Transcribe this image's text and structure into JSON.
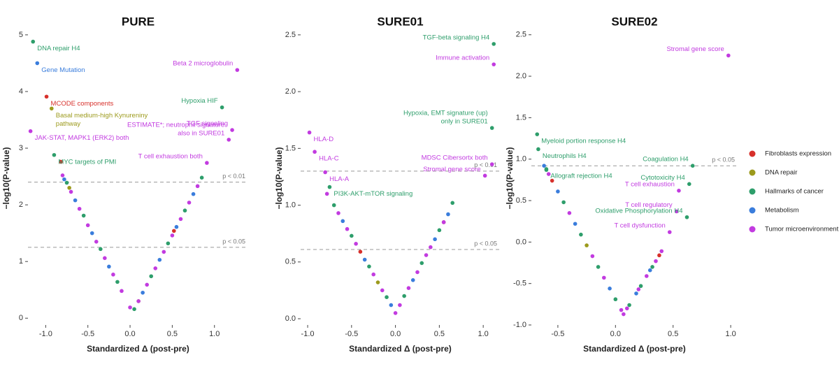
{
  "legend": [
    {
      "name": "Fibroblasts expression",
      "color": "#d7302b"
    },
    {
      "name": "DNA repair",
      "color": "#9c9a1c"
    },
    {
      "name": "Hallmarks of cancer",
      "color": "#2e9e6b"
    },
    {
      "name": "Metabolism",
      "color": "#3a7ddc"
    },
    {
      "name": "Tumor microenvironment",
      "color": "#c23be0"
    }
  ],
  "chart_data": [
    {
      "type": "scatter",
      "title": "PURE",
      "xlabel": "Standardized Δ (post-pre)",
      "ylabel": "−log10(P-value)",
      "xlim": [
        -1.21,
        1.4
      ],
      "ylim": [
        -0.12,
        5.06
      ],
      "xticks": [
        {
          "value": -1,
          "label": "-1.0"
        },
        -0.5,
        {
          "value": 0,
          "label": "0.0"
        },
        0.5,
        {
          "value": 1,
          "label": "1.0"
        }
      ],
      "yticks": [
        0,
        1,
        2,
        3,
        4,
        5
      ],
      "thresholds": [
        {
          "value": 2.4,
          "label": "p < 0.01"
        },
        {
          "value": 1.25,
          "label": "p < 0.05"
        }
      ],
      "series": [
        {
          "x": [
            -0.82,
            0.52
          ],
          "values": [
            2.76,
            1.54
          ]
        },
        {
          "x": [
            -0.72,
            0.1
          ],
          "values": [
            2.3,
            0.3
          ]
        },
        {
          "x": [
            -0.75,
            -0.55,
            -0.35,
            -0.15,
            0.05,
            0.25,
            0.45,
            0.65,
            0.85
          ],
          "values": [
            2.39,
            1.81,
            1.22,
            0.64,
            0.16,
            0.74,
            1.32,
            1.9,
            2.48
          ]
        },
        {
          "x": [
            -0.78,
            -0.65,
            -0.45,
            -0.25,
            0.15,
            0.35,
            0.55,
            0.75
          ],
          "values": [
            2.45,
            2.08,
            1.5,
            0.91,
            0.45,
            1.03,
            1.61,
            2.19
          ]
        },
        {
          "x": [
            -0.8,
            -0.7,
            -0.6,
            -0.5,
            -0.4,
            -0.3,
            -0.2,
            -0.1,
            0.0,
            0.1,
            0.2,
            0.3,
            0.4,
            0.5,
            0.6,
            0.7,
            0.8
          ],
          "values": [
            2.52,
            2.23,
            1.93,
            1.64,
            1.35,
            1.06,
            0.77,
            0.48,
            0.19,
            0.3,
            0.59,
            0.88,
            1.17,
            1.46,
            1.75,
            2.04,
            2.33
          ]
        }
      ],
      "annotations": [
        {
          "lines": [
            "DNA repair H4"
          ],
          "x": -1.15,
          "y": 4.88,
          "color": "#2e9e6b"
        },
        {
          "lines": [
            "Gene Mutation"
          ],
          "x": -1.1,
          "y": 4.5,
          "color": "#3a7ddc"
        },
        {
          "lines": [
            "Beta 2 microglobulin"
          ],
          "x": 1.27,
          "y": 4.38,
          "color": "#c23be0"
        },
        {
          "lines": [
            "MCODE components"
          ],
          "x": -0.99,
          "y": 3.91,
          "color": "#d7302b"
        },
        {
          "lines": [
            "Basal medium-high Kynureniny",
            "pathway"
          ],
          "x": -0.93,
          "y": 3.7,
          "color": "#9c9a1c"
        },
        {
          "lines": [
            "Hypoxia HIF"
          ],
          "x": 1.09,
          "y": 3.72,
          "color": "#2e9e6b"
        },
        {
          "lines": [
            "TGF signaling"
          ],
          "x": 1.21,
          "y": 3.32,
          "color": "#c23be0"
        },
        {
          "lines": [
            "JAK-STAT, MAPK1 (ERK2) both"
          ],
          "x": -1.18,
          "y": 3.3,
          "color": "#c23be0"
        },
        {
          "lines": [
            "ESTIMATE*; neutrophil signature",
            "also in SURE01"
          ],
          "x": 1.17,
          "y": 3.15,
          "color": "#c23be0"
        },
        {
          "lines": [
            "MYC targets of PMI"
          ],
          "x": -0.9,
          "y": 2.88,
          "color": "#2e9e6b"
        },
        {
          "lines": [
            "T cell exhaustion both"
          ],
          "x": 0.91,
          "y": 2.74,
          "color": "#c23be0"
        }
      ]
    },
    {
      "type": "scatter",
      "title": "SURE01",
      "xlabel": "Standardized Δ (post-pre)",
      "ylabel": "−log10(P-value)",
      "xlim": [
        -1.08,
        1.19
      ],
      "ylim": [
        -0.055,
        2.53
      ],
      "xticks": [
        {
          "value": -1,
          "label": "-1.0"
        },
        -0.5,
        {
          "value": 0,
          "label": "0.0"
        },
        0.5,
        {
          "value": 1,
          "label": "1.0"
        }
      ],
      "yticks": [
        {
          "value": 0,
          "label": "0.0"
        },
        0.5,
        {
          "value": 1,
          "label": "1.0"
        },
        1.5,
        {
          "value": 2,
          "label": "2.0"
        },
        2.5
      ],
      "thresholds": [
        {
          "value": 1.3,
          "label": "p < 0.01"
        },
        {
          "value": 0.61,
          "label": "p < 0.05"
        }
      ],
      "series": [
        {
          "x": [
            -0.4,
            0.55
          ],
          "values": [
            0.59,
            0.85
          ]
        },
        {
          "x": [
            -0.2
          ],
          "values": [
            0.32
          ]
        },
        {
          "x": [
            -0.7,
            -0.5,
            -0.3,
            -0.1,
            0.1,
            0.3,
            0.5,
            0.65
          ],
          "values": [
            1.0,
            0.73,
            0.46,
            0.19,
            0.2,
            0.49,
            0.78,
            1.02
          ]
        },
        {
          "x": [
            -0.6,
            -0.35,
            -0.05,
            0.2,
            0.45,
            0.6
          ],
          "values": [
            0.86,
            0.52,
            0.12,
            0.34,
            0.7,
            0.92
          ]
        },
        {
          "x": [
            -0.78,
            -0.65,
            -0.55,
            -0.45,
            -0.25,
            -0.15,
            0.0,
            0.05,
            0.15,
            0.25,
            0.35,
            0.4,
            0.55
          ],
          "values": [
            1.1,
            0.93,
            0.79,
            0.66,
            0.39,
            0.25,
            0.05,
            0.12,
            0.27,
            0.41,
            0.56,
            0.63,
            0.85
          ]
        }
      ],
      "annotations": [
        {
          "lines": [
            "TGF-beta signaling H4"
          ],
          "x": 1.12,
          "y": 2.42,
          "color": "#2e9e6b"
        },
        {
          "lines": [
            "Immune activation"
          ],
          "x": 1.12,
          "y": 2.24,
          "color": "#c23be0"
        },
        {
          "lines": [
            "HLA-D"
          ],
          "x": -0.98,
          "y": 1.64,
          "color": "#c23be0"
        },
        {
          "lines": [
            "HLA-C"
          ],
          "x": -0.92,
          "y": 1.47,
          "color": "#c23be0"
        },
        {
          "lines": [
            "HLA-A"
          ],
          "x": -0.8,
          "y": 1.29,
          "color": "#c23be0"
        },
        {
          "lines": [
            "Hypoxia, EMT signature (up)",
            "only in SURE01"
          ],
          "x": 1.1,
          "y": 1.68,
          "color": "#2e9e6b"
        },
        {
          "lines": [
            "MDSC Cibersortx both"
          ],
          "x": 1.1,
          "y": 1.36,
          "color": "#c23be0"
        },
        {
          "lines": [
            "PI3K-AKT-mTOR signaling"
          ],
          "x": -0.75,
          "y": 1.16,
          "color": "#2e9e6b"
        },
        {
          "lines": [
            "Stromal gene score"
          ],
          "x": 1.02,
          "y": 1.26,
          "color": "#c23be0"
        }
      ]
    },
    {
      "type": "scatter",
      "title": "SURE02",
      "xlabel": "Standardized Δ (post-pre)",
      "ylabel": "−log10(P-value)",
      "xlim": [
        -0.73,
        1.06
      ],
      "ylim": [
        -1.0,
        2.54
      ],
      "xticks": [
        -0.5,
        {
          "value": 0,
          "label": "0.0"
        },
        0.5,
        {
          "value": 1,
          "label": "1.0"
        }
      ],
      "yticks": [
        {
          "value": -1,
          "label": "-1.0"
        },
        -0.5,
        {
          "value": 0,
          "label": "0.0"
        },
        0.5,
        {
          "value": 1,
          "label": "1.0"
        },
        1.5,
        {
          "value": 2,
          "label": "2.0"
        },
        2.5
      ],
      "thresholds": [
        {
          "value": 0.92,
          "label": "p < 0.05"
        }
      ],
      "series": [
        {
          "x": [
            -0.55,
            0.38
          ],
          "values": [
            0.74,
            -0.16
          ]
        },
        {
          "x": [
            -0.25
          ],
          "values": [
            -0.04
          ]
        },
        {
          "x": [
            -0.6,
            -0.45,
            -0.3,
            -0.15,
            0.0,
            0.12,
            0.22,
            0.32
          ],
          "values": [
            0.87,
            0.48,
            0.09,
            -0.3,
            -0.69,
            -0.76,
            -0.53,
            -0.3
          ]
        },
        {
          "x": [
            -0.62,
            -0.5,
            -0.35,
            -0.05,
            0.18,
            0.3
          ],
          "values": [
            0.92,
            0.61,
            0.22,
            -0.56,
            -0.62,
            -0.34
          ]
        },
        {
          "x": [
            -0.58,
            -0.4,
            -0.2,
            -0.1,
            0.05,
            0.07,
            0.1,
            0.2,
            0.27,
            0.35,
            0.4
          ],
          "values": [
            0.82,
            0.35,
            -0.17,
            -0.43,
            -0.82,
            -0.87,
            -0.8,
            -0.57,
            -0.41,
            -0.23,
            -0.11
          ]
        }
      ],
      "annotations": [
        {
          "lines": [
            "Stromal gene score"
          ],
          "x": 0.98,
          "y": 2.25,
          "color": "#c23be0"
        },
        {
          "lines": [
            "Myeloid portion response H4"
          ],
          "x": -0.68,
          "y": 1.3,
          "color": "#2e9e6b"
        },
        {
          "lines": [
            "Neutrophils H4"
          ],
          "x": -0.67,
          "y": 1.12,
          "color": "#2e9e6b"
        },
        {
          "lines": [
            "Allograft rejection H4"
          ],
          "x": -0.6,
          "y": 0.88,
          "color": "#2e9e6b"
        },
        {
          "lines": [
            "Coagulation H4"
          ],
          "x": 0.67,
          "y": 0.92,
          "color": "#2e9e6b"
        },
        {
          "lines": [
            "Cytotoxicity H4"
          ],
          "x": 0.64,
          "y": 0.7,
          "color": "#2e9e6b"
        },
        {
          "lines": [
            "T cell exhaustion"
          ],
          "x": 0.55,
          "y": 0.62,
          "color": "#c23be0"
        },
        {
          "lines": [
            "T cell regulatory"
          ],
          "x": 0.53,
          "y": 0.37,
          "color": "#c23be0"
        },
        {
          "lines": [
            "Oxidative Phosphorylation H4"
          ],
          "x": 0.62,
          "y": 0.3,
          "color": "#2e9e6b"
        },
        {
          "lines": [
            "T cell dysfunction"
          ],
          "x": 0.47,
          "y": 0.12,
          "color": "#c23be0"
        }
      ]
    }
  ]
}
